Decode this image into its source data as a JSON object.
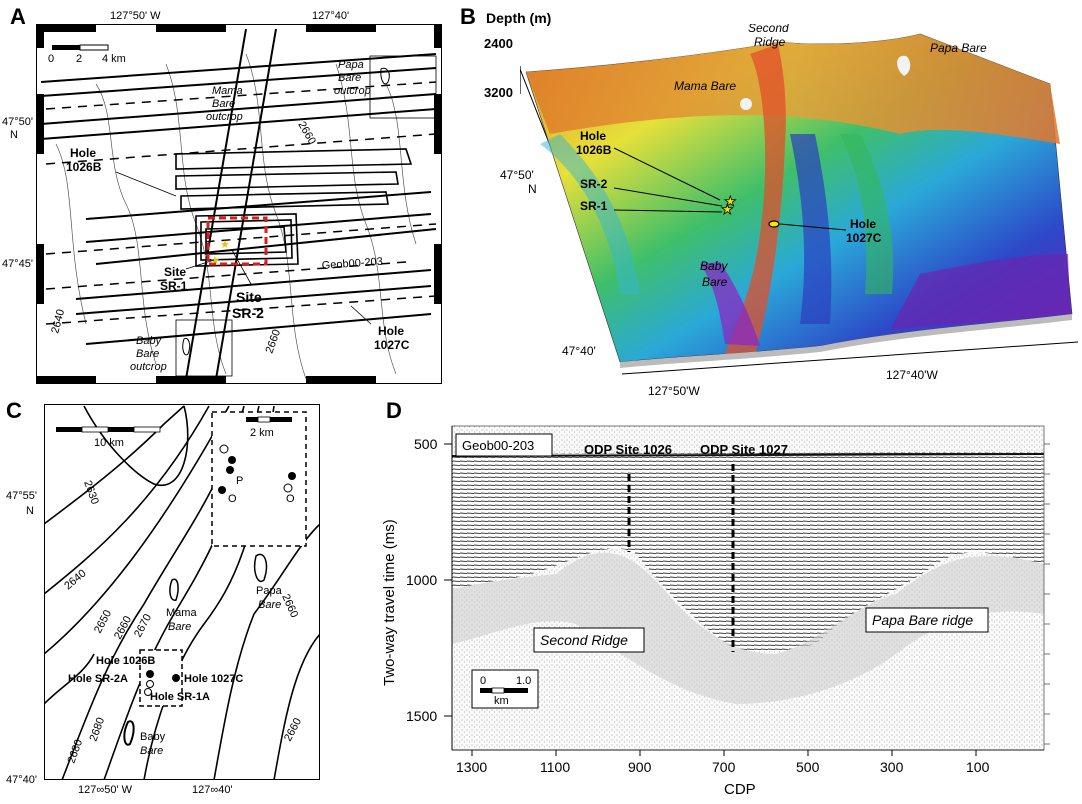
{
  "panel_a": {
    "letter": "A",
    "lon_labels": [
      "127°50' W",
      "127°40'"
    ],
    "lat_labels": [
      "47°50'",
      "N",
      "47°45'"
    ],
    "scale": {
      "ticks": [
        "0",
        "2",
        "4 km"
      ]
    },
    "labels": {
      "papa": [
        "Papa",
        "Bare",
        "outcrop"
      ],
      "mama": [
        "Mama",
        "Bare",
        "outcrop"
      ],
      "baby": [
        "Baby",
        "Bare",
        "outcrop"
      ],
      "hole_1026b": [
        "Hole",
        "1026B"
      ],
      "hole_1027c": [
        "Hole",
        "1027C"
      ],
      "site_sr1": [
        "Site",
        "SR-1"
      ],
      "site_sr2": [
        "Site",
        "SR-2"
      ],
      "line": "Geob00-203",
      "contours": [
        "2660",
        "2640",
        "2660"
      ]
    }
  },
  "panel_b": {
    "letter": "B",
    "depth_title": "Depth (m)",
    "depth_ticks": [
      "2400",
      "3200"
    ],
    "labels": {
      "second_ridge": [
        "Second",
        "Ridge"
      ],
      "papa": "Papa Bare",
      "mama": "Mama Bare",
      "baby": [
        "Baby",
        "Bare"
      ],
      "hole_1026b": [
        "Hole",
        "1026B"
      ],
      "hole_1027c": [
        "Hole",
        "1027C"
      ],
      "sr2": "SR-2",
      "sr1": "SR-1"
    },
    "lat_labels": [
      "47°50'",
      "N",
      "47°40'"
    ],
    "lon_labels": [
      "127°50'W",
      "127°40'W"
    ]
  },
  "panel_c": {
    "letter": "C",
    "scale_main": "10 km",
    "scale_inset": "2 km",
    "lat_labels": [
      "47°55'",
      "N",
      "47°40'"
    ],
    "lon_labels": [
      "127∞50' W",
      "127∞40'"
    ],
    "contours": [
      "2630",
      "2640",
      "2650",
      "2660",
      "2670",
      "2680",
      "2680",
      "2660",
      "2660"
    ],
    "labels": {
      "papa": [
        "Papa",
        "Bare"
      ],
      "mama": [
        "Mama",
        "Bare"
      ],
      "baby": [
        "Baby",
        "Bare"
      ],
      "hole_1026b": "Hole 1026B",
      "hole_sr2a": "Hole SR-2A",
      "hole_1027c": "Hole 1027C",
      "hole_sr1a": "Hole SR-1A",
      "inset_p": "P",
      "inset_o1": "O",
      "inset_o2": "O"
    }
  },
  "panel_d": {
    "letter": "D",
    "line_name": "Geob00-203",
    "site_1026": "ODP Site 1026",
    "site_1027": "ODP Site 1027",
    "second_ridge": "Second Ridge",
    "papa_ridge": "Papa Bare ridge",
    "ylabel": "Two-way travel time (ms)",
    "xlabel": "CDP",
    "y_ticks": [
      "500",
      "1000",
      "1500"
    ],
    "x_ticks": [
      "1300",
      "1100",
      "900",
      "700",
      "500",
      "300",
      "100"
    ],
    "scale": {
      "ticks": [
        "0",
        "1.0"
      ],
      "unit": "km"
    }
  }
}
